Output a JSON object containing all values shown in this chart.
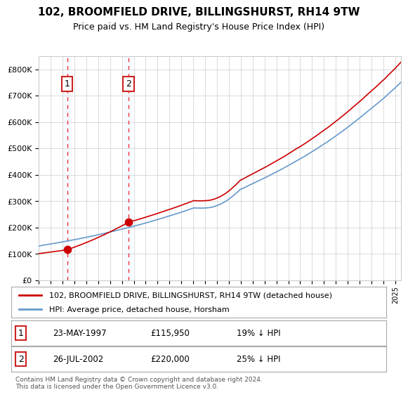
{
  "title": "102, BROOMFIELD DRIVE, BILLINGSHURST, RH14 9TW",
  "subtitle": "Price paid vs. HM Land Registry's House Price Index (HPI)",
  "legend_line1": "102, BROOMFIELD DRIVE, BILLINGSHURST, RH14 9TW (detached house)",
  "legend_line2": "HPI: Average price, detached house, Horsham",
  "annotation1_date": "23-MAY-1997",
  "annotation1_price": "£115,950",
  "annotation1_hpi": "19% ↓ HPI",
  "annotation1_year": 1997.39,
  "annotation1_value": 115950,
  "annotation2_date": "26-JUL-2002",
  "annotation2_price": "£220,000",
  "annotation2_hpi": "25% ↓ HPI",
  "annotation2_year": 2002.56,
  "annotation2_value": 220000,
  "hpi_color": "#6699cc",
  "price_color": "#cc0000",
  "vline_color": "#ee3333",
  "shade_color": "#ddeeff",
  "background_color": "#ffffff",
  "grid_color": "#cccccc",
  "footer": "Contains HM Land Registry data © Crown copyright and database right 2024.\nThis data is licensed under the Open Government Licence v3.0.",
  "ylim": [
    0,
    850000
  ],
  "xlim_start": 1995.0,
  "xlim_end": 2025.5
}
